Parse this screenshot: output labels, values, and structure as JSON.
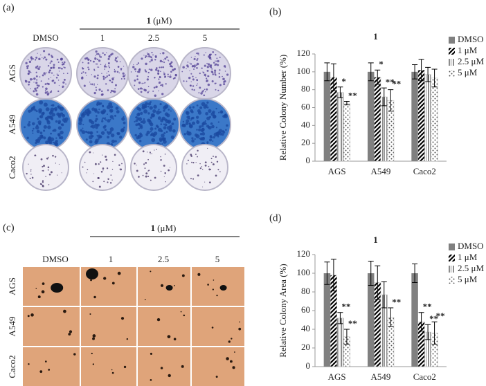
{
  "image_panels": [
    {
      "label": "(a)",
      "compound": "1",
      "unit": "(μM)",
      "columns": [
        "DMSO",
        "1",
        "2.5",
        "5"
      ],
      "rows": [
        "AGS",
        "A549",
        "Caco2"
      ]
    },
    {
      "label": "(c)",
      "compound": "1",
      "unit": "(μM)",
      "columns": [
        "DMSO",
        "1",
        "2.5",
        "5"
      ],
      "rows": [
        "AGS",
        "A549",
        "Caco2"
      ]
    }
  ],
  "chart_data": [
    {
      "type": "bar",
      "panel_label": "(b)",
      "title": "1",
      "y_label": "Relative  Colony Number (%)",
      "categories": [
        "AGS",
        "A549",
        "Caco2"
      ],
      "ylim": [
        0,
        120
      ],
      "yticks": [
        0,
        20,
        40,
        60,
        80,
        100,
        120
      ],
      "grid": false,
      "legend": "top-right",
      "series": [
        {
          "name": "DMSO",
          "color": "#808080",
          "pattern": "solid",
          "values": [
            100,
            100,
            100
          ],
          "errors": [
            10,
            10,
            8
          ],
          "significance": [
            null,
            null,
            null
          ]
        },
        {
          "name": "1 μM",
          "color": "#000000",
          "pattern": "diagonal",
          "values": [
            94,
            94,
            102
          ],
          "errors": [
            15,
            8,
            12
          ],
          "significance": [
            null,
            "*",
            null
          ]
        },
        {
          "name": "2.5 μM",
          "color": "#8c8c8c",
          "pattern": "vertical",
          "values": [
            77,
            72,
            97
          ],
          "errors": [
            6,
            10,
            8
          ],
          "significance": [
            "*",
            "**",
            null
          ]
        },
        {
          "name": "5 μM",
          "color": "#555555",
          "pattern": "dots",
          "values": [
            65,
            68,
            93
          ],
          "errors": [
            2,
            12,
            10
          ],
          "significance": [
            "**",
            "**",
            null
          ]
        }
      ]
    },
    {
      "type": "bar",
      "panel_label": "(d)",
      "title": "1",
      "y_label": "Relative Colony Area (%)",
      "categories": [
        "AGS",
        "A549",
        "Caco2"
      ],
      "ylim": [
        0,
        120
      ],
      "yticks": [
        0,
        20,
        40,
        60,
        80,
        100,
        120
      ],
      "grid": false,
      "legend": "top-right",
      "series": [
        {
          "name": "DMSO",
          "color": "#808080",
          "pattern": "solid",
          "values": [
            100,
            100,
            100
          ],
          "errors": [
            12,
            13,
            10
          ],
          "significance": [
            null,
            null,
            null
          ]
        },
        {
          "name": "1 μM",
          "color": "#000000",
          "pattern": "diagonal",
          "values": [
            98,
            90,
            48
          ],
          "errors": [
            17,
            18,
            10
          ],
          "significance": [
            null,
            null,
            "**"
          ]
        },
        {
          "name": "2.5 μM",
          "color": "#8c8c8c",
          "pattern": "vertical",
          "values": [
            52,
            77,
            37
          ],
          "errors": [
            6,
            14,
            8
          ],
          "significance": [
            "**",
            null,
            "**"
          ]
        },
        {
          "name": "5 μM",
          "color": "#555555",
          "pattern": "dots",
          "values": [
            32,
            53,
            36
          ],
          "errors": [
            8,
            10,
            12
          ],
          "significance": [
            "**",
            "**",
            "**"
          ]
        }
      ]
    }
  ]
}
